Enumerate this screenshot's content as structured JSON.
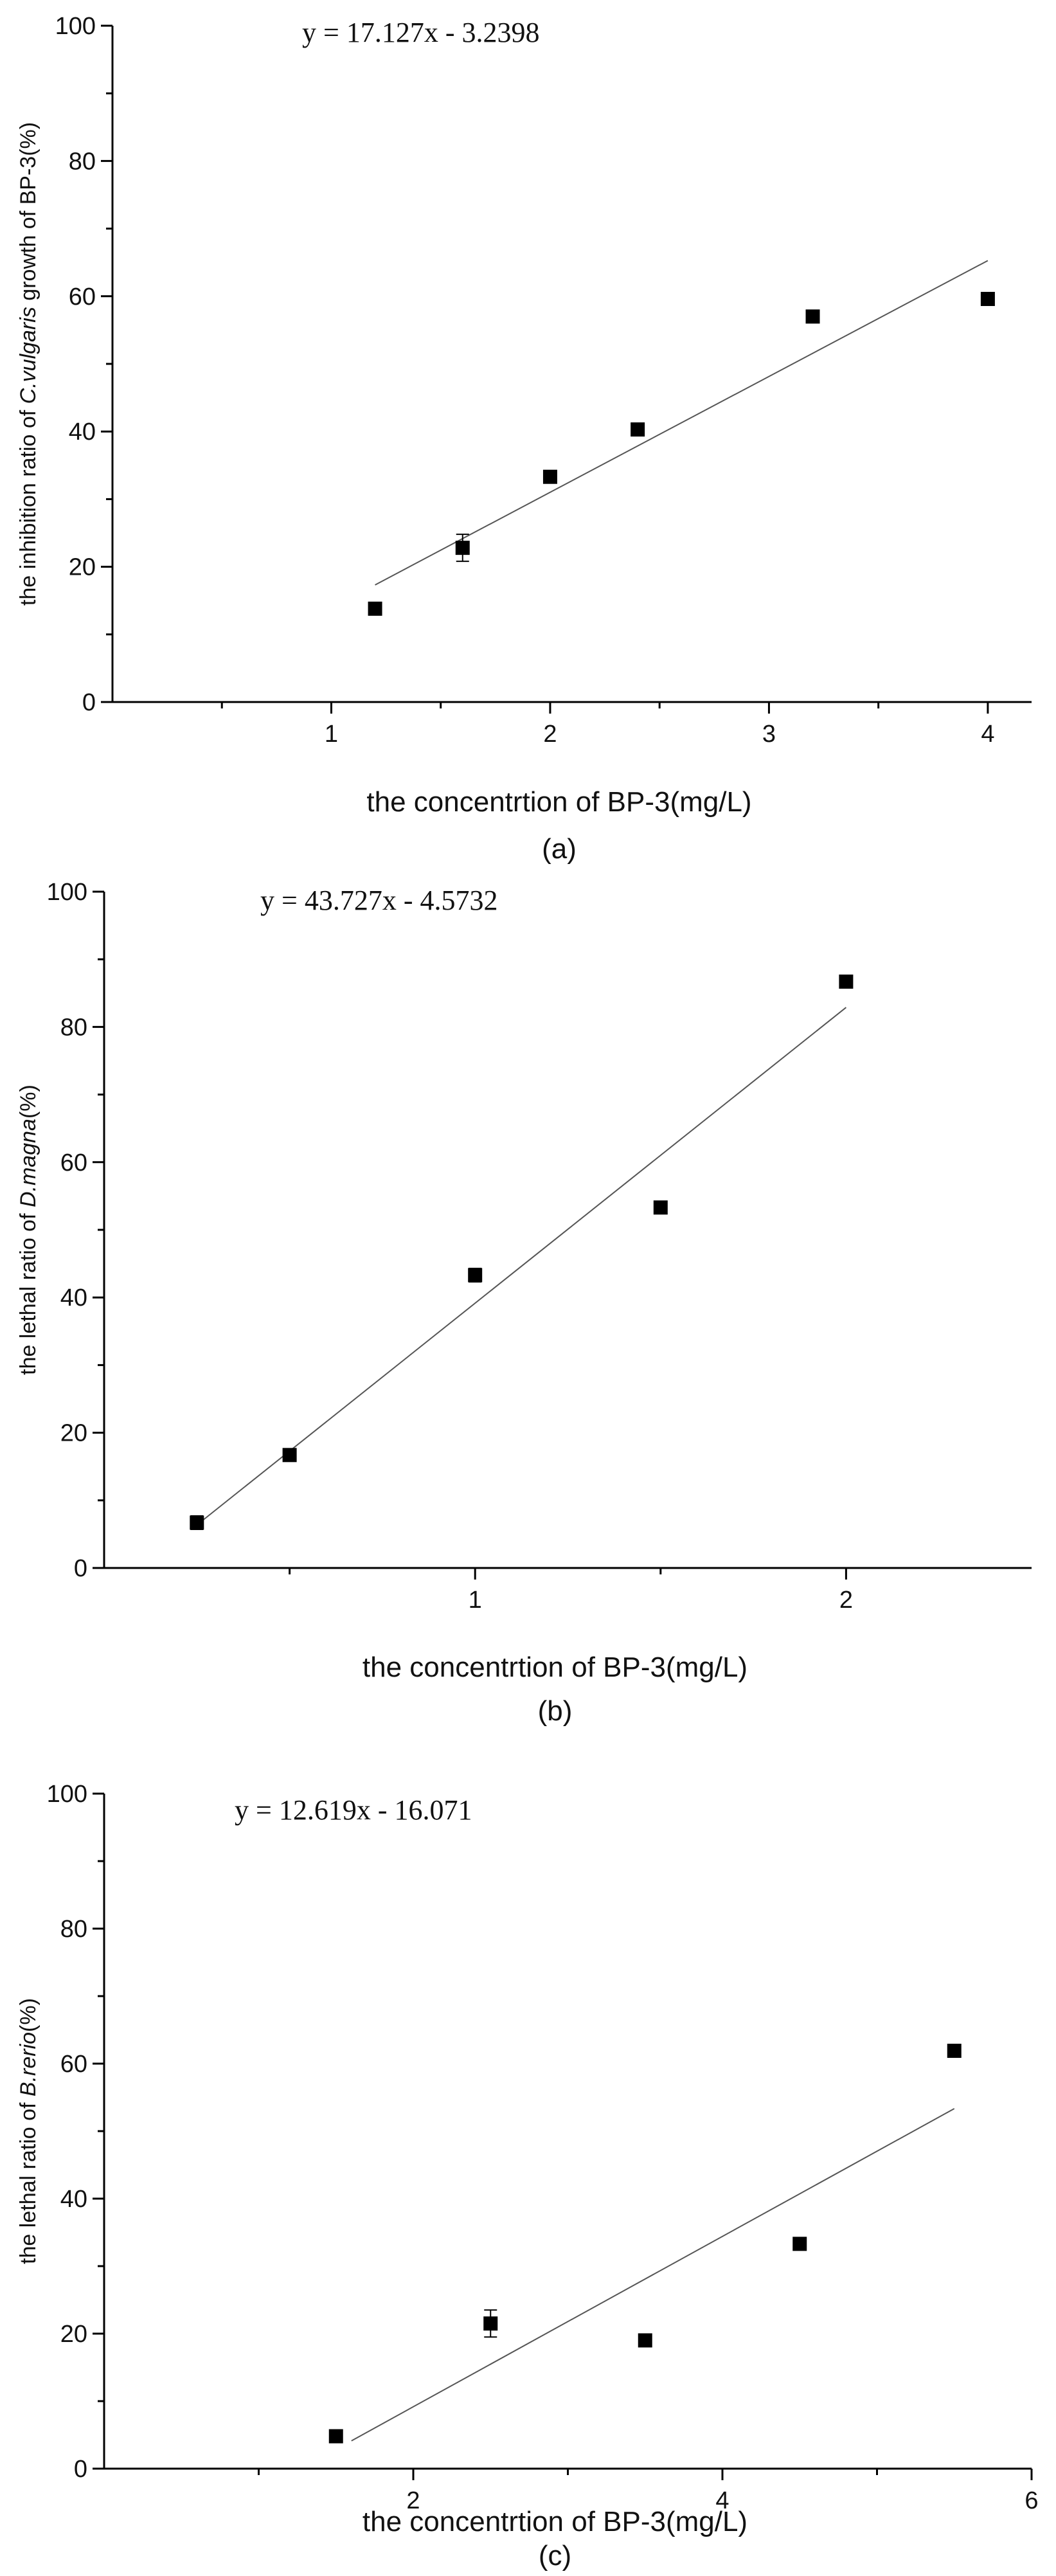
{
  "chart_data": [
    {
      "id": "a",
      "type": "scatter",
      "panel_label": "(a)",
      "equation": "y = 17.127x - 3.2398",
      "xlabel": "the concentrtion of BP-3(mg/L)",
      "ylabel_parts": [
        "the inhibition ratio of ",
        "C.vulgaris",
        " growth of BP-3(%)"
      ],
      "xlim": [
        0,
        4.2
      ],
      "ylim": [
        0,
        100
      ],
      "xticks": [
        1,
        2,
        3,
        4
      ],
      "xminor": [
        0.5,
        1.5,
        2.5,
        3.5
      ],
      "yticks": [
        0,
        20,
        40,
        60,
        80,
        100
      ],
      "yminor": [
        10,
        30,
        50,
        70,
        90
      ],
      "fit": {
        "slope": 17.127,
        "intercept": -3.2398,
        "x_range": [
          1.2,
          4
        ]
      },
      "points": [
        {
          "x": 1.2,
          "y": 13.8,
          "err": 0.5
        },
        {
          "x": 1.6,
          "y": 22.8,
          "err": 2.0
        },
        {
          "x": 2.0,
          "y": 33.3,
          "err": 0.6
        },
        {
          "x": 2.4,
          "y": 40.3,
          "err": 0.6
        },
        {
          "x": 3.2,
          "y": 57.0,
          "err": 0.6
        },
        {
          "x": 4.0,
          "y": 59.6,
          "err": 0.6
        }
      ]
    },
    {
      "id": "b",
      "type": "scatter",
      "panel_label": "(b)",
      "equation": "y = 43.727x - 4.5732",
      "xlabel": "the concentrtion of BP-3(mg/L)",
      "ylabel_parts": [
        "the lethal ratio of ",
        "D.magna",
        "(%)"
      ],
      "xlim": [
        0,
        2.5
      ],
      "ylim": [
        0,
        100
      ],
      "xticks": [
        1,
        2
      ],
      "xminor": [
        0.5,
        1.5
      ],
      "yticks": [
        0,
        20,
        40,
        60,
        80,
        100
      ],
      "yminor": [
        10,
        30,
        50,
        70,
        90
      ],
      "fit": {
        "slope": 43.727,
        "intercept": -4.5732,
        "x_range": [
          0.25,
          2
        ]
      },
      "points": [
        {
          "x": 0.25,
          "y": 6.7,
          "err": 1.0
        },
        {
          "x": 0.5,
          "y": 16.7,
          "err": 0.6
        },
        {
          "x": 1.0,
          "y": 43.3,
          "err": 1.0
        },
        {
          "x": 1.5,
          "y": 53.3,
          "err": 0.6
        },
        {
          "x": 2.0,
          "y": 86.7,
          "err": 0.6
        }
      ]
    },
    {
      "id": "c",
      "type": "scatter",
      "panel_label": "(c)",
      "equation": "y = 12.619x - 16.071",
      "xlabel": "the concentrtion of BP-3(mg/L)",
      "ylabel_parts": [
        "the lethal ratio of ",
        "B.rerio",
        "(%)"
      ],
      "xlim": [
        0,
        6
      ],
      "ylim": [
        0,
        100
      ],
      "xticks": [
        2,
        4,
        6
      ],
      "xminor": [
        1,
        3,
        5
      ],
      "yticks": [
        0,
        20,
        40,
        60,
        80,
        100
      ],
      "yminor": [
        10,
        30,
        50,
        70,
        90
      ],
      "fit": {
        "slope": 12.619,
        "intercept": -16.071,
        "x_range": [
          1.6,
          5.5
        ]
      },
      "points": [
        {
          "x": 1.5,
          "y": 4.8,
          "err": 0.5
        },
        {
          "x": 2.5,
          "y": 21.5,
          "err": 2.0
        },
        {
          "x": 3.5,
          "y": 19.0,
          "err": 0.6
        },
        {
          "x": 4.5,
          "y": 33.3,
          "err": 0.6
        },
        {
          "x": 5.5,
          "y": 61.9,
          "err": 0.6
        }
      ]
    }
  ]
}
